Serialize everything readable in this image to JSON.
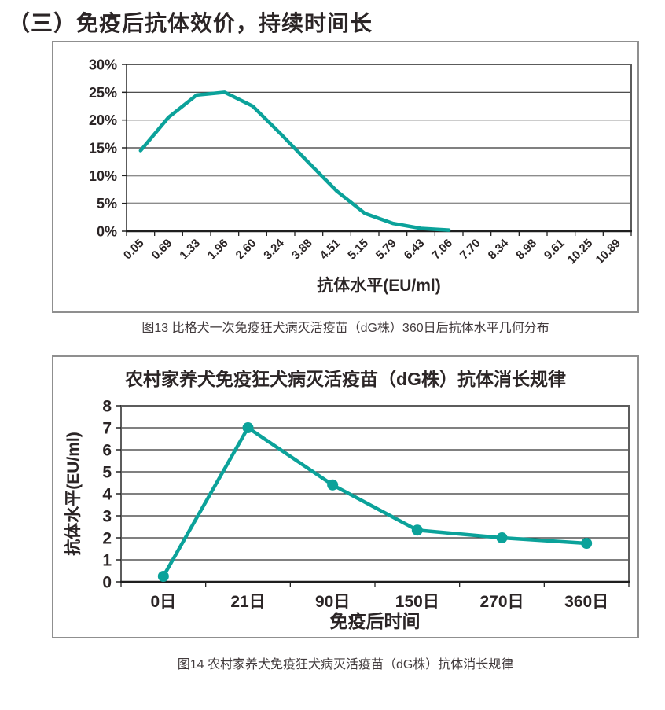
{
  "page": {
    "heading": "（三）免疫后抗体效价，持续时间长",
    "background_color": "#ffffff",
    "accent_color": "#0ba29a",
    "text_color": "#2b2626"
  },
  "figure13": {
    "caption": "图13 比格犬一次免疫狂犬病灭活疫苗（dG株）360日后抗体水平几何分布"
  },
  "figure14": {
    "caption": "图14 农村家养犬免疫狂犬病灭活疫苗（dG株）抗体消长规律"
  },
  "chart_data": [
    {
      "id": "figure13",
      "type": "line",
      "title": "",
      "xlabel": "抗体水平(EU/ml)",
      "ylabel": "",
      "categories": [
        "0.05",
        "0.69",
        "1.33",
        "1.96",
        "2.60",
        "3.24",
        "3.88",
        "4.51",
        "5.15",
        "5.79",
        "6.43",
        "7.06",
        "7.70",
        "8.34",
        "8.98",
        "9.61",
        "10.25",
        "10.89"
      ],
      "values": [
        14.5,
        20.5,
        24.5,
        25,
        22.5,
        17.5,
        12.3,
        7.2,
        3.2,
        1.4,
        0.5,
        0.2,
        null,
        null,
        null,
        null,
        null,
        null
      ],
      "y_ticks": [
        "0%",
        "5%",
        "10%",
        "15%",
        "20%",
        "25%",
        "30%"
      ],
      "ylim": [
        0,
        30
      ],
      "y_step": 5,
      "grid": true,
      "legend": "none",
      "line_color": "#0ba29a",
      "markers": false
    },
    {
      "id": "figure14",
      "type": "line",
      "title": "农村家养犬免疫狂犬病灭活疫苗（dG株）抗体消长规律",
      "xlabel": "免疫后时间",
      "ylabel": "抗体水平(EU/ml)",
      "categories": [
        "0日",
        "21日",
        "90日",
        "150日",
        "270日",
        "360日"
      ],
      "values": [
        0.25,
        7,
        4.4,
        2.35,
        2,
        1.75
      ],
      "y_ticks": [
        "0",
        "1",
        "2",
        "3",
        "4",
        "5",
        "6",
        "7",
        "8"
      ],
      "ylim": [
        0,
        8
      ],
      "y_step": 1,
      "grid": true,
      "legend": "none",
      "line_color": "#0ba29a",
      "markers": true
    }
  ]
}
